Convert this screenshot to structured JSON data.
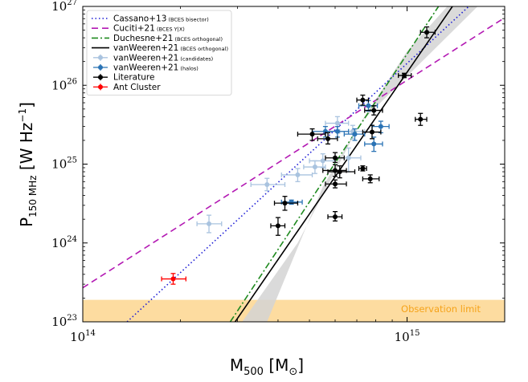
{
  "chart_data": {
    "type": "scatter",
    "xscale": "log",
    "yscale": "log",
    "xlim": [
      100000000000000.0,
      2000000000000000.0
    ],
    "ylim": [
      1e+23,
      1e+27
    ],
    "xlabel": {
      "base": "M",
      "sub": "500",
      "unit_open": " [M",
      "unit_sym": "⊙",
      "unit_close": "]"
    },
    "ylabel": {
      "base": "P",
      "sub": "150 MHz",
      "unit": " [W Hz",
      "exp": "−1",
      "close": "]"
    },
    "xticks": [
      {
        "value": 100000000000000.0,
        "base": "10",
        "exp": "14"
      },
      {
        "value": 1000000000000000.0,
        "base": "10",
        "exp": "15"
      }
    ],
    "yticks": [
      {
        "value": 1e+23,
        "base": "10",
        "exp": "23"
      },
      {
        "value": 1e+24,
        "base": "10",
        "exp": "24"
      },
      {
        "value": 1e+25,
        "base": "10",
        "exp": "25"
      },
      {
        "value": 1e+26,
        "base": "10",
        "exp": "26"
      },
      {
        "value": 1e+27,
        "base": "10",
        "exp": "27"
      }
    ],
    "observation_limit": {
      "label": "Observation limit",
      "ymin": 1e+23,
      "ymax": 1.9e+23,
      "color": "#fddca0",
      "text_color": "#f5a31a"
    },
    "confidence_band": {
      "color": "#d3d3d3",
      "upper": [
        [
          310000000000000.0,
          1e+23
        ],
        [
          460000000000000.0,
          1e+24
        ],
        [
          720000000000000.0,
          3.4e+25
        ],
        [
          1000000000000000.0,
          2.7e+26
        ],
        [
          1330000000000000.0,
          1e+27
        ]
      ],
      "lower": [
        [
          370000000000000.0,
          1e+23
        ],
        [
          550000000000000.0,
          5.2e+24
        ],
        [
          720000000000000.0,
          3.4e+25
        ],
        [
          1000000000000000.0,
          1.3e+26
        ],
        [
          1650000000000000.0,
          1e+27
        ]
      ]
    },
    "lines": [
      {
        "name": "Cassano+13",
        "note": "(BCES bisector)",
        "color": "#1c1cd6",
        "dash": "1.5,3",
        "width": 1.6,
        "points": [
          [
            137000000000000.0,
            1e+23
          ],
          [
            1550000000000000.0,
            1e+27
          ]
        ]
      },
      {
        "name": "Cuciti+21",
        "note": "(BCES Y|X)",
        "color": "#b319b3",
        "dash": "8,5",
        "width": 1.6,
        "points": [
          [
            100000000000000.0,
            2.7e+23
          ],
          [
            2000000000000000.0,
            7.2e+26
          ]
        ]
      },
      {
        "name": "Duchesne+21",
        "note": "(BCES orthogonal)",
        "color": "#1f8a1f",
        "dash": "8,3,2,3",
        "width": 1.6,
        "points": [
          [
            285000000000000.0,
            1e+23
          ],
          [
            1250000000000000.0,
            1e+27
          ]
        ]
      },
      {
        "name": "vanWeeren+21",
        "note": "(BCES orthogonal)",
        "color": "#000000",
        "dash": "",
        "width": 1.6,
        "points": [
          [
            295000000000000.0,
            1e+23
          ],
          [
            1380000000000000.0,
            1e+27
          ]
        ]
      }
    ],
    "series": [
      {
        "name": "vanWeeren+21",
        "note": "(candidates)",
        "color": "#a9c3df",
        "points": [
          {
            "x": 245000000000000.0,
            "y": 1.75e+24,
            "xerr": [
              225000000000000.0,
              268000000000000.0
            ],
            "yerr": [
              1.35e+24,
              2.25e+24
            ]
          },
          {
            "x": 370000000000000.0,
            "y": 5.5e+24,
            "xerr": [
              330000000000000.0,
              420000000000000.0
            ],
            "yerr": [
              4.6e+24,
              6.6e+24
            ]
          },
          {
            "x": 460000000000000.0,
            "y": 7.3e+24,
            "xerr": [
              410000000000000.0,
              510000000000000.0
            ],
            "yerr": [
              6e+24,
              8.8e+24
            ]
          },
          {
            "x": 520000000000000.0,
            "y": 9.2e+24,
            "xerr": [
              480000000000000.0,
              560000000000000.0
            ],
            "yerr": [
              7.6e+24,
              1.1e+25
            ]
          },
          {
            "x": 550000000000000.0,
            "y": 1.1e+25,
            "xerr": [
              500000000000000.0,
              600000000000000.0
            ],
            "yerr": [
              9e+24,
              1.35e+25
            ]
          },
          {
            "x": 610000000000000.0,
            "y": 3.3e+25,
            "xerr": [
              560000000000000.0,
              660000000000000.0
            ],
            "yerr": [
              2.7e+25,
              4e+25
            ]
          },
          {
            "x": 660000000000000.0,
            "y": 1.2e+25,
            "xerr": [
              600000000000000.0,
              720000000000000.0
            ],
            "yerr": [
              8e+24,
              1.6e+25
            ]
          },
          {
            "x": 680000000000000.0,
            "y": 2.6e+25,
            "xerr": [
              620000000000000.0,
              740000000000000.0
            ],
            "yerr": [
              2.1e+25,
              3.1e+25
            ]
          }
        ]
      },
      {
        "name": "vanWeeren+21",
        "note": "(halos)",
        "color": "#2a73b5",
        "points": [
          {
            "x": 440000000000000.0,
            "y": 3.3e+24,
            "xerr": [
              410000000000000.0,
              475000000000000.0
            ],
            "yerr": [
              3.1e+24,
              3.5e+24
            ]
          },
          {
            "x": 560000000000000.0,
            "y": 2.6e+25,
            "xerr": [
              510000000000000.0,
              610000000000000.0
            ],
            "yerr": [
              2.2e+25,
              3e+25
            ]
          },
          {
            "x": 610000000000000.0,
            "y": 2.6e+25,
            "xerr": [
              560000000000000.0,
              660000000000000.0
            ],
            "yerr": [
              2.2e+25,
              3e+25
            ]
          },
          {
            "x": 690000000000000.0,
            "y": 2.4e+25,
            "xerr": [
              640000000000000.0,
              740000000000000.0
            ],
            "yerr": [
              2e+25,
              2.8e+25
            ]
          },
          {
            "x": 760000000000000.0,
            "y": 5.5e+25,
            "xerr": [
              710000000000000.0,
              810000000000000.0
            ],
            "yerr": [
              4.7e+25,
              6.4e+25
            ]
          },
          {
            "x": 790000000000000.0,
            "y": 1.8e+25,
            "xerr": [
              740000000000000.0,
              840000000000000.0
            ],
            "yerr": [
              1.45e+25,
              2.2e+25
            ]
          },
          {
            "x": 830000000000000.0,
            "y": 3e+25,
            "xerr": [
              780000000000000.0,
              880000000000000.0
            ],
            "yerr": [
              2.5e+25,
              3.5e+25
            ]
          }
        ]
      },
      {
        "name": "Literature",
        "note": "",
        "color": "#000000",
        "points": [
          {
            "x": 400000000000000.0,
            "y": 1.65e+24,
            "xerr": [
              380000000000000.0,
              420000000000000.0
            ],
            "yerr": [
              1.25e+24,
              2.1e+24
            ]
          },
          {
            "x": 420000000000000.0,
            "y": 3.2e+24,
            "xerr": [
              390000000000000.0,
              460000000000000.0
            ],
            "yerr": [
              2.6e+24,
              3.9e+24
            ]
          },
          {
            "x": 510000000000000.0,
            "y": 2.4e+25,
            "xerr": [
              460000000000000.0,
              560000000000000.0
            ],
            "yerr": [
              2e+25,
              2.8e+25
            ]
          },
          {
            "x": 570000000000000.0,
            "y": 2.1e+25,
            "xerr": [
              530000000000000.0,
              610000000000000.0
            ],
            "yerr": [
              1.8e+25,
              2.5e+25
            ]
          },
          {
            "x": 600000000000000.0,
            "y": 1.2e+25,
            "xerr": [
              560000000000000.0,
              640000000000000.0
            ],
            "yerr": [
              1.05e+25,
              1.4e+25
            ]
          },
          {
            "x": 600000000000000.0,
            "y": 2.15e+24,
            "xerr": [
              570000000000000.0,
              630000000000000.0
            ],
            "yerr": [
              1.9e+24,
              2.5e+24
            ]
          },
          {
            "x": 600000000000000.0,
            "y": 5.6e+24,
            "xerr": [
              560000000000000.0,
              650000000000000.0
            ],
            "yerr": [
              5e+24,
              6.3e+24
            ]
          },
          {
            "x": 600000000000000.0,
            "y": 8.3e+24,
            "xerr": [
              550000000000000.0,
              650000000000000.0
            ],
            "yerr": [
              7e+24,
              9.8e+24
            ]
          },
          {
            "x": 620000000000000.0,
            "y": 8e+24,
            "xerr": [
              570000000000000.0,
              690000000000000.0
            ],
            "yerr": [
              6.7e+24,
              9.5e+24
            ]
          },
          {
            "x": 730000000000000.0,
            "y": 8.8e+24,
            "xerr": [
              710000000000000.0,
              750000000000000.0
            ],
            "yerr": [
              8.2e+24,
              9.5e+24
            ]
          },
          {
            "x": 730000000000000.0,
            "y": 6.5e+25,
            "xerr": [
              700000000000000.0,
              760000000000000.0
            ],
            "yerr": [
              5.6e+25,
              7.5e+25
            ]
          },
          {
            "x": 770000000000000.0,
            "y": 6.5e+24,
            "xerr": [
              730000000000000.0,
              820000000000000.0
            ],
            "yerr": [
              5.8e+24,
              7.3e+24
            ]
          },
          {
            "x": 780000000000000.0,
            "y": 2.55e+25,
            "xerr": [
              730000000000000.0,
              830000000000000.0
            ],
            "yerr": [
              2.1e+25,
              3.1e+25
            ]
          },
          {
            "x": 790000000000000.0,
            "y": 4.8e+25,
            "xerr": [
              740000000000000.0,
              840000000000000.0
            ],
            "yerr": [
              4.2e+25,
              5.5e+25
            ]
          },
          {
            "x": 980000000000000.0,
            "y": 1.33e+26,
            "xerr": [
              940000000000000.0,
              1030000000000000.0
            ],
            "yerr": [
              1.25e+26,
              1.42e+26
            ]
          },
          {
            "x": 1100000000000000.0,
            "y": 3.7e+25,
            "xerr": [
              1060000000000000.0,
              1150000000000000.0
            ],
            "yerr": [
              3.1e+25,
              4.4e+25
            ]
          },
          {
            "x": 1150000000000000.0,
            "y": 4.7e+26,
            "xerr": [
              1100000000000000.0,
              1220000000000000.0
            ],
            "yerr": [
              4e+26,
              5.5e+26
            ]
          }
        ]
      },
      {
        "name": "Ant Cluster",
        "note": "",
        "color": "#ff0000",
        "points": [
          {
            "x": 190000000000000.0,
            "y": 3.5e+23,
            "xerr": [
              175000000000000.0,
              208000000000000.0
            ],
            "yerr": [
              3e+23,
              4.1e+23
            ]
          }
        ]
      }
    ],
    "legend": {
      "position": "top-left"
    }
  }
}
